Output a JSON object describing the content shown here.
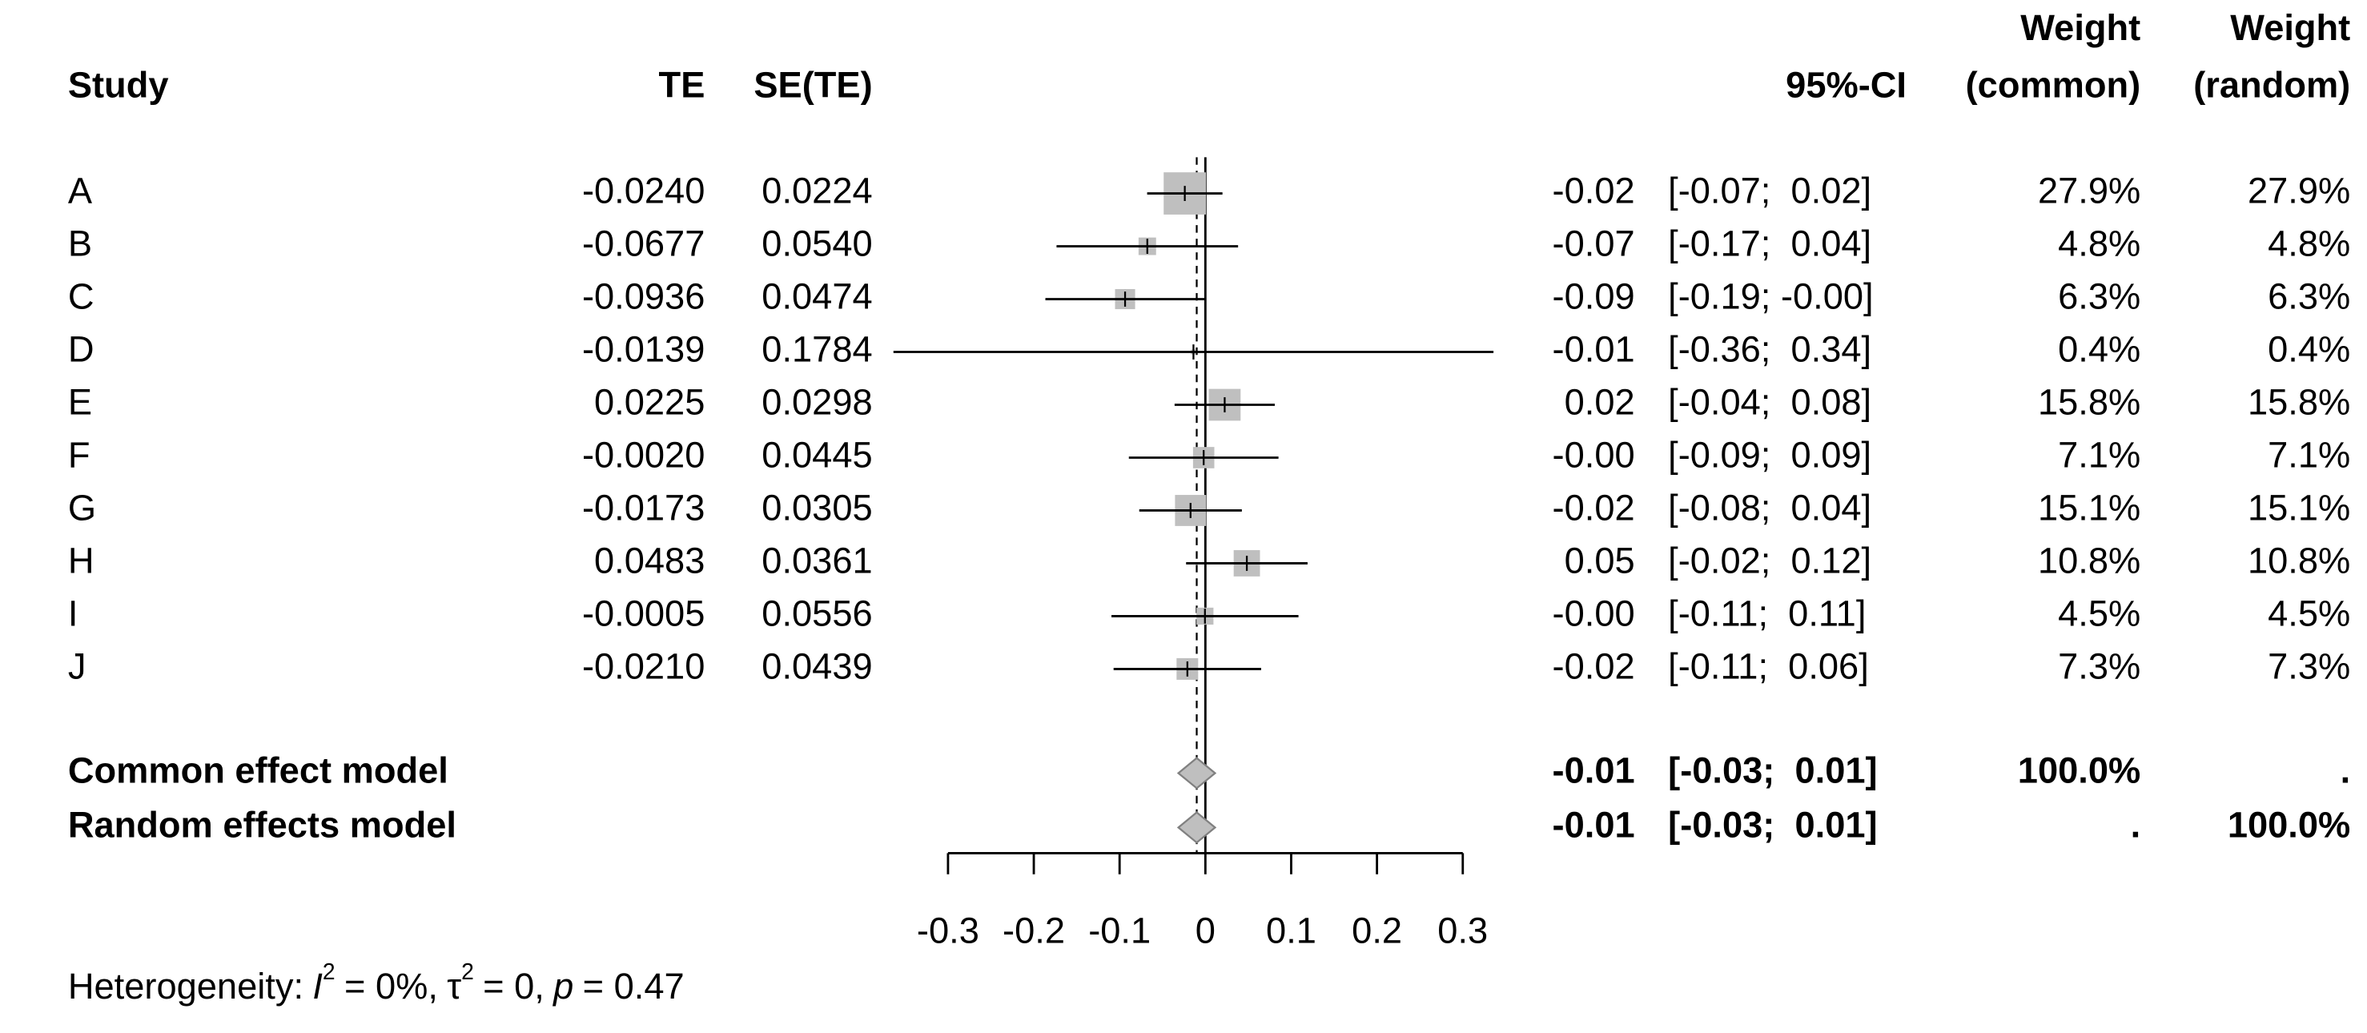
{
  "chart_data": {
    "type": "forest",
    "columns": {
      "study": "Study",
      "te": "TE",
      "se": "SE(TE)",
      "ci": "95%-CI",
      "weight_common": [
        "Weight",
        "(common)"
      ],
      "weight_random": [
        "Weight",
        "(random)"
      ]
    },
    "studies": [
      {
        "study": "A",
        "te": {
          "value": -0.024,
          "label": "-0.0240"
        },
        "se": {
          "value": 0.0224,
          "label": "0.0224"
        },
        "estimate": {
          "value": -0.02,
          "label": "-0.02"
        },
        "ci": {
          "lower": -0.0679,
          "upper": 0.0199,
          "label": "[-0.07;  0.02]"
        },
        "weight_common": {
          "value": 27.9,
          "label": "27.9%"
        },
        "weight_random": {
          "value": 27.9,
          "label": "27.9%"
        }
      },
      {
        "study": "B",
        "te": {
          "value": -0.0677,
          "label": "-0.0677"
        },
        "se": {
          "value": 0.054,
          "label": "0.0540"
        },
        "estimate": {
          "value": -0.07,
          "label": "-0.07"
        },
        "ci": {
          "lower": -0.1735,
          "upper": 0.0381,
          "label": "[-0.17;  0.04]"
        },
        "weight_common": {
          "value": 4.8,
          "label": "4.8%"
        },
        "weight_random": {
          "value": 4.8,
          "label": "4.8%"
        }
      },
      {
        "study": "C",
        "te": {
          "value": -0.0936,
          "label": "-0.0936"
        },
        "se": {
          "value": 0.0474,
          "label": "0.0474"
        },
        "estimate": {
          "value": -0.09,
          "label": "-0.09"
        },
        "ci": {
          "lower": -0.1865,
          "upper": -0.0007,
          "label": "[-0.19; -0.00]"
        },
        "weight_common": {
          "value": 6.3,
          "label": "6.3%"
        },
        "weight_random": {
          "value": 6.3,
          "label": "6.3%"
        }
      },
      {
        "study": "D",
        "te": {
          "value": -0.0139,
          "label": "-0.0139"
        },
        "se": {
          "value": 0.1784,
          "label": "0.1784"
        },
        "estimate": {
          "value": -0.01,
          "label": "-0.01"
        },
        "ci": {
          "lower": -0.3636,
          "upper": 0.3358,
          "label": "[-0.36;  0.34]"
        },
        "weight_common": {
          "value": 0.4,
          "label": "0.4%"
        },
        "weight_random": {
          "value": 0.4,
          "label": "0.4%"
        }
      },
      {
        "study": "E",
        "te": {
          "value": 0.0225,
          "label": "0.0225"
        },
        "se": {
          "value": 0.0298,
          "label": "0.0298"
        },
        "estimate": {
          "value": 0.02,
          "label": "0.02"
        },
        "ci": {
          "lower": -0.0359,
          "upper": 0.0809,
          "label": "[-0.04;  0.08]"
        },
        "weight_common": {
          "value": 15.8,
          "label": "15.8%"
        },
        "weight_random": {
          "value": 15.8,
          "label": "15.8%"
        }
      },
      {
        "study": "F",
        "te": {
          "value": -0.002,
          "label": "-0.0020"
        },
        "se": {
          "value": 0.0445,
          "label": "0.0445"
        },
        "estimate": {
          "value": -0.0,
          "label": "-0.00"
        },
        "ci": {
          "lower": -0.0892,
          "upper": 0.0852,
          "label": "[-0.09;  0.09]"
        },
        "weight_common": {
          "value": 7.1,
          "label": "7.1%"
        },
        "weight_random": {
          "value": 7.1,
          "label": "7.1%"
        }
      },
      {
        "study": "G",
        "te": {
          "value": -0.0173,
          "label": "-0.0173"
        },
        "se": {
          "value": 0.0305,
          "label": "0.0305"
        },
        "estimate": {
          "value": -0.02,
          "label": "-0.02"
        },
        "ci": {
          "lower": -0.0771,
          "upper": 0.0425,
          "label": "[-0.08;  0.04]"
        },
        "weight_common": {
          "value": 15.1,
          "label": "15.1%"
        },
        "weight_random": {
          "value": 15.1,
          "label": "15.1%"
        }
      },
      {
        "study": "H",
        "te": {
          "value": 0.0483,
          "label": "0.0483"
        },
        "se": {
          "value": 0.0361,
          "label": "0.0361"
        },
        "estimate": {
          "value": 0.05,
          "label": "0.05"
        },
        "ci": {
          "lower": -0.0225,
          "upper": 0.1191,
          "label": "[-0.02;  0.12]"
        },
        "weight_common": {
          "value": 10.8,
          "label": "10.8%"
        },
        "weight_random": {
          "value": 10.8,
          "label": "10.8%"
        }
      },
      {
        "study": "I",
        "te": {
          "value": -0.0005,
          "label": "-0.0005"
        },
        "se": {
          "value": 0.0556,
          "label": "0.0556"
        },
        "estimate": {
          "value": -0.0,
          "label": "-0.00"
        },
        "ci": {
          "lower": -0.1095,
          "upper": 0.1085,
          "label": "[-0.11;  0.11]"
        },
        "weight_common": {
          "value": 4.5,
          "label": "4.5%"
        },
        "weight_random": {
          "value": 4.5,
          "label": "4.5%"
        }
      },
      {
        "study": "J",
        "te": {
          "value": -0.021,
          "label": "-0.0210"
        },
        "se": {
          "value": 0.0439,
          "label": "0.0439"
        },
        "estimate": {
          "value": -0.02,
          "label": "-0.02"
        },
        "ci": {
          "lower": -0.107,
          "upper": 0.065,
          "label": "[-0.11;  0.06]"
        },
        "weight_common": {
          "value": 7.3,
          "label": "7.3%"
        },
        "weight_random": {
          "value": 7.3,
          "label": "7.3%"
        }
      }
    ],
    "models": [
      {
        "name": "Common effect model",
        "estimate": {
          "value": -0.0101,
          "label": "-0.01"
        },
        "ci": {
          "lower": -0.0315,
          "upper": 0.0113,
          "label": "[-0.03;  0.01]"
        },
        "weight_common": "100.0%",
        "weight_random": "."
      },
      {
        "name": "Random effects model",
        "estimate": {
          "value": -0.0101,
          "label": "-0.01"
        },
        "ci": {
          "lower": -0.0315,
          "upper": 0.0113,
          "label": "[-0.03;  0.01]"
        },
        "weight_common": ".",
        "weight_random": "100.0%"
      }
    ],
    "reference_line": 0,
    "xlim": [
      -0.3,
      0.3
    ],
    "xticks": [
      -0.3,
      -0.2,
      -0.1,
      0,
      0.1,
      0.2,
      0.3
    ],
    "square_color": "#bfbfbf",
    "diamond_color": "#bfbfbf",
    "heterogeneity": {
      "text": "Heterogeneity:",
      "i2": {
        "symbol": "I",
        "exponent": "2",
        "label": "= 0%,"
      },
      "tau2": {
        "symbol": "τ",
        "exponent": "2",
        "label": "= 0,"
      },
      "p": {
        "symbol": "p",
        "label": "= 0.47"
      }
    }
  }
}
